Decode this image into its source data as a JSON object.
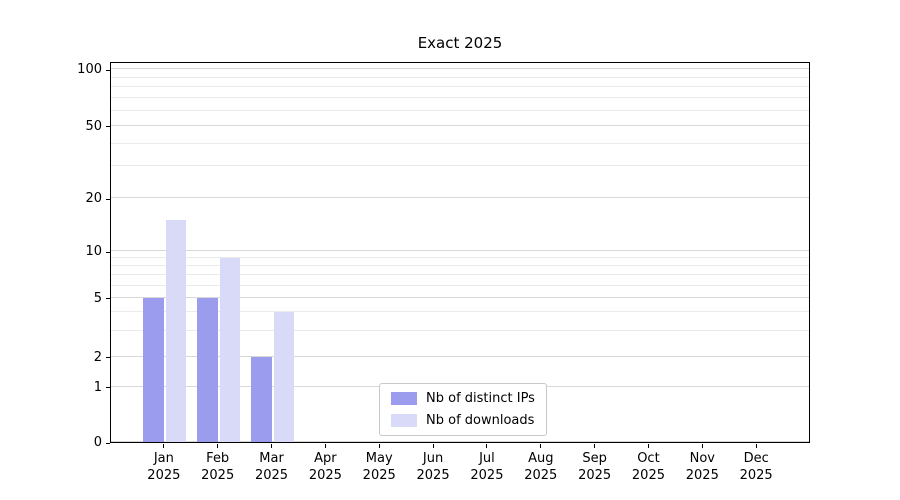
{
  "title": "Exact 2025",
  "chart_data": {
    "type": "bar",
    "title": "Exact 2025",
    "x_categories": [
      "Jan",
      "Feb",
      "Mar",
      "Apr",
      "May",
      "Jun",
      "Jul",
      "Aug",
      "Sep",
      "Oct",
      "Nov",
      "Dec"
    ],
    "x_year": "2025",
    "series": [
      {
        "name": "Nb of distinct IPs",
        "color": "#9c9cee",
        "values": [
          5,
          5,
          2,
          0,
          0,
          0,
          0,
          0,
          0,
          0,
          0,
          0
        ]
      },
      {
        "name": "Nb of downloads",
        "color": "#d9d9f8",
        "values": [
          15,
          9,
          4,
          0,
          0,
          0,
          0,
          0,
          0,
          0,
          0,
          0
        ]
      }
    ],
    "y_axis": {
      "scale": "log-above-1-linear-below",
      "major_ticks": [
        0,
        1,
        2,
        5,
        10,
        20,
        50,
        100
      ],
      "minor_ticks": [
        3,
        4,
        6,
        7,
        8,
        9,
        30,
        40,
        60,
        70,
        80,
        90
      ],
      "anchors": [
        [
          0,
          0
        ],
        [
          1,
          0.1444
        ],
        [
          2,
          0.2231
        ],
        [
          5,
          0.378
        ],
        [
          10,
          0.5013
        ],
        [
          20,
          0.6404
        ],
        [
          50,
          0.8294
        ],
        [
          100,
          0.979
        ]
      ]
    },
    "legend": {
      "position": "lower center",
      "items": [
        "Nb of distinct IPs",
        "Nb of downloads"
      ]
    },
    "grid": true,
    "colors": {
      "bar_dark": "#9c9cee",
      "bar_light": "#d9d9f8",
      "grid_major": "#d8d8d8",
      "grid_minor": "#ebebeb",
      "spine": "#000000",
      "background": "#ffffff"
    }
  }
}
